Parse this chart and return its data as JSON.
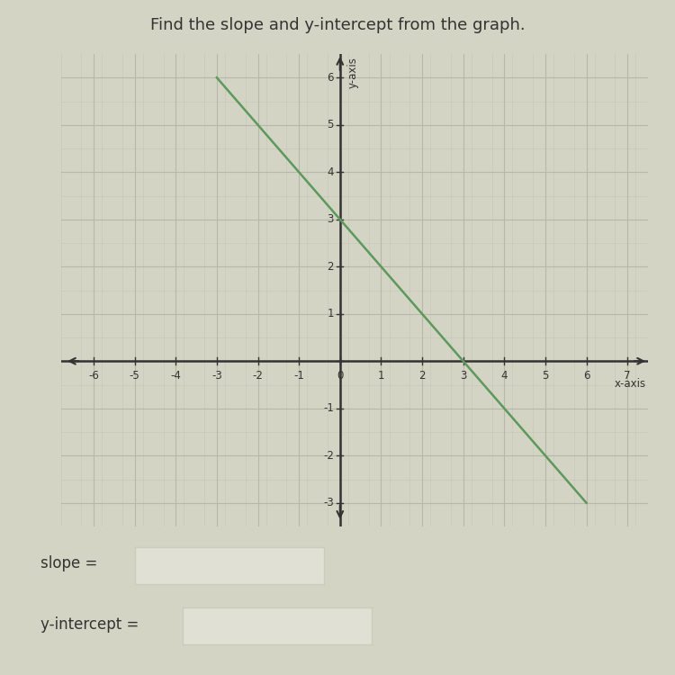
{
  "title": "Find the slope and y-intercept from the graph.",
  "title_fontsize": 13,
  "line_x": [
    -3.0,
    6.0
  ],
  "line_y": [
    6.0,
    -3.0
  ],
  "line_color": "#5a9a5a",
  "line_width": 1.8,
  "xlim": [
    -6.8,
    7.5
  ],
  "ylim": [
    -3.5,
    6.5
  ],
  "xticks": [
    -6,
    -5,
    -4,
    -3,
    -2,
    -1,
    0,
    1,
    2,
    3,
    4,
    5,
    6,
    7
  ],
  "yticks": [
    -3,
    -2,
    -1,
    0,
    1,
    2,
    3,
    4,
    5,
    6
  ],
  "xlabel": "x-axis",
  "ylabel": "y-axis",
  "bg_color": "#d4d4c4",
  "grid_color": "#b8b8a8",
  "axis_color": "#333333",
  "tick_color": "#333333",
  "slope_label": "slope =",
  "yint_label": "y-intercept =",
  "box_fill": "#e0e0d4",
  "box_edge": "#ccccbb",
  "font_color": "#333333"
}
